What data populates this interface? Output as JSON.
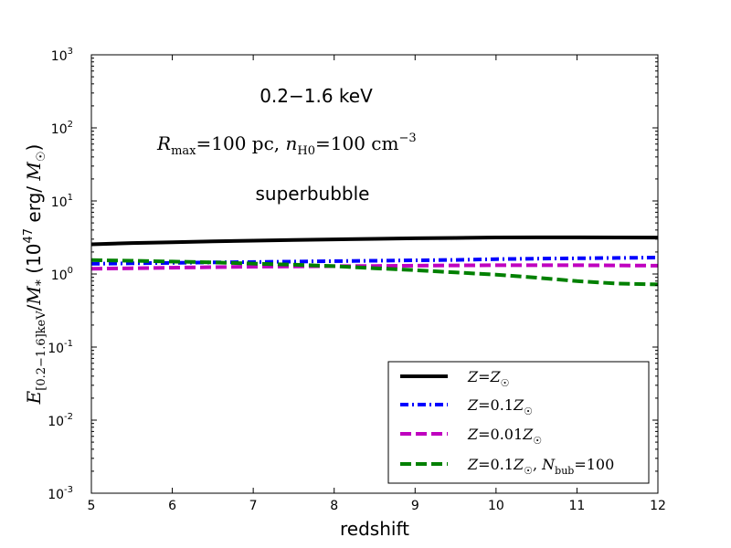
{
  "chart_data": {
    "type": "line",
    "yscale": "log",
    "xlim": [
      5,
      12
    ],
    "ylim": [
      0.001,
      1000
    ],
    "xlabel": "redshift",
    "ylabel": "E[0.2−1.6]keV/M* (10^47 erg/ M☉)",
    "xticks": [
      "5",
      "6",
      "7",
      "8",
      "9",
      "10",
      "11",
      "12"
    ],
    "yticks": [
      "10^-3",
      "10^-2",
      "10^-1",
      "10^0",
      "10^1",
      "10^2",
      "10^3"
    ],
    "annotations": [
      "0.2−1.6 keV",
      "Rmax=100 pc, nH0=100 cm^-3",
      "superbubble"
    ],
    "legend_placement": "lower-right",
    "series": [
      {
        "name": "Z=Z☉",
        "color": "#000000",
        "style": "solid",
        "x": [
          5,
          5.5,
          6,
          6.5,
          7,
          7.5,
          8,
          8.5,
          9,
          9.5,
          10,
          10.5,
          11,
          11.5,
          12
        ],
        "values": [
          2.55,
          2.65,
          2.72,
          2.8,
          2.86,
          2.93,
          2.98,
          3.03,
          3.08,
          3.12,
          3.16,
          3.17,
          3.17,
          3.16,
          3.15
        ]
      },
      {
        "name": "Z=0.1Z☉",
        "color": "#0000ff",
        "style": "dashdot",
        "x": [
          5,
          5.5,
          6,
          6.5,
          7,
          7.5,
          8,
          8.5,
          9,
          9.5,
          10,
          10.5,
          11,
          11.5,
          12
        ],
        "values": [
          1.38,
          1.4,
          1.42,
          1.44,
          1.46,
          1.48,
          1.5,
          1.52,
          1.54,
          1.56,
          1.6,
          1.62,
          1.64,
          1.66,
          1.68
        ]
      },
      {
        "name": "Z=0.01Z☉",
        "color": "#bf00bf",
        "style": "dashed",
        "x": [
          5,
          5.5,
          6,
          6.5,
          7,
          7.5,
          8,
          8.5,
          9,
          9.5,
          10,
          10.5,
          11,
          11.5,
          12
        ],
        "values": [
          1.18,
          1.2,
          1.22,
          1.24,
          1.26,
          1.27,
          1.28,
          1.29,
          1.3,
          1.31,
          1.32,
          1.32,
          1.32,
          1.31,
          1.3
        ]
      },
      {
        "name": "Z=0.1Z☉, Nbub=100",
        "color": "#008000",
        "style": "dashed",
        "x": [
          5,
          5.5,
          6,
          6.5,
          7,
          7.5,
          8,
          8.5,
          9,
          9.5,
          10,
          10.5,
          11,
          11.5,
          12
        ],
        "values": [
          1.55,
          1.52,
          1.48,
          1.44,
          1.39,
          1.34,
          1.28,
          1.2,
          1.13,
          1.05,
          0.98,
          0.89,
          0.8,
          0.74,
          0.72
        ]
      }
    ]
  }
}
